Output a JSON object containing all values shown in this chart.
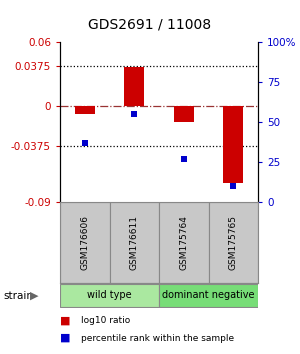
{
  "title": "GDS2691 / 11008",
  "categories": [
    "GSM176606",
    "GSM176611",
    "GSM175764",
    "GSM175765"
  ],
  "log10_ratio": [
    -0.007,
    0.037,
    -0.015,
    -0.072
  ],
  "percentile_rank": [
    37,
    55,
    27,
    10
  ],
  "ylim_left": [
    -0.09,
    0.06
  ],
  "ylim_right": [
    0,
    100
  ],
  "yticks_left": [
    -0.09,
    -0.0375,
    0,
    0.0375,
    0.06
  ],
  "ytick_labels_left": [
    "-0.09",
    "-0.0375",
    "0",
    "0.0375",
    "0.06"
  ],
  "yticks_right": [
    0,
    25,
    50,
    75,
    100
  ],
  "ytick_labels_right": [
    "0",
    "25",
    "50",
    "75",
    "100%"
  ],
  "hlines_dotted": [
    -0.0375,
    0.0375
  ],
  "hline_dashdot": 0,
  "red_color": "#cc0000",
  "blue_color": "#0000cc",
  "group_labels": [
    "wild type",
    "dominant negative"
  ],
  "group_ranges": [
    [
      0,
      2
    ],
    [
      2,
      4
    ]
  ],
  "group_colors": [
    "#aae8a0",
    "#77dd77"
  ],
  "strain_label": "strain",
  "legend_items": [
    "log10 ratio",
    "percentile rank within the sample"
  ],
  "background_color": "#ffffff",
  "title_fontsize": 10,
  "tick_fontsize": 7.5,
  "bar_width": 0.4,
  "sample_box_color": "#c8c8c8",
  "sample_box_border": "#888888"
}
